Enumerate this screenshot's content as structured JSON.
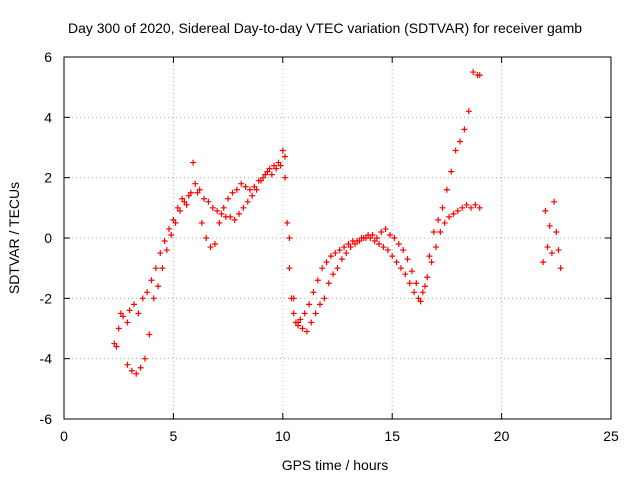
{
  "chart_data": {
    "type": "scatter",
    "title": "Day 300 of 2020, Sidereal Day-to-day VTEC variation (SDTVAR) for receiver gamb",
    "xlabel": "GPS time / hours",
    "ylabel": "SDTVAR / TECUs",
    "xlim": [
      0,
      25
    ],
    "ylim": [
      -6,
      6
    ],
    "x_ticks": [
      0,
      5,
      10,
      15,
      20,
      25
    ],
    "y_ticks": [
      -6,
      -4,
      -2,
      0,
      2,
      4,
      6
    ],
    "x_tick_labels": [
      "0",
      "5",
      "10",
      "15",
      "20",
      "25"
    ],
    "y_tick_labels": [
      "-6",
      "-4",
      "-2",
      "0",
      "2",
      "4",
      "6"
    ],
    "grid": true,
    "marker": "+",
    "color": "#ff0000",
    "series": [
      {
        "x": [
          2.3,
          2.4,
          2.5,
          2.6,
          2.7,
          2.9,
          3.0,
          3.2,
          3.4,
          3.6,
          3.8,
          4.0,
          4.2,
          4.4,
          4.6,
          4.8,
          5.0,
          5.2,
          5.4,
          5.6,
          5.8,
          6.0,
          6.2,
          6.4,
          6.6,
          6.8,
          7.0,
          7.2,
          7.4,
          7.6,
          7.8,
          8.0,
          8.2,
          8.4,
          8.6,
          8.8,
          9.0,
          9.2,
          9.4,
          9.6,
          9.8,
          10.0,
          10.1,
          10.2,
          10.3,
          10.4,
          10.5,
          10.6,
          10.7,
          10.8,
          11.0,
          11.2,
          11.4,
          11.6,
          11.8,
          12.0,
          12.2,
          12.4,
          12.6,
          12.8,
          13.0,
          13.2,
          13.4,
          13.6,
          13.8,
          14.0,
          14.2,
          14.4,
          14.6,
          14.8,
          15.0,
          15.2,
          15.4,
          15.6,
          15.8,
          16.0,
          16.2,
          16.4,
          16.6,
          16.8,
          17.0,
          17.2,
          17.4,
          17.6,
          17.8,
          18.0,
          18.2,
          18.4,
          18.6,
          18.8,
          19.0
        ],
        "y": [
          -3.5,
          -3.6,
          -3.0,
          -2.5,
          -2.6,
          -2.8,
          -2.4,
          -2.2,
          -2.5,
          -2.0,
          -1.8,
          -1.4,
          -1.0,
          -0.5,
          -0.1,
          0.3,
          0.6,
          1.0,
          1.3,
          1.1,
          1.5,
          1.8,
          1.6,
          1.3,
          1.2,
          1.0,
          0.9,
          0.8,
          0.7,
          0.7,
          0.6,
          0.8,
          1.0,
          1.2,
          1.4,
          1.6,
          1.9,
          2.1,
          2.3,
          2.4,
          2.5,
          2.9,
          2.0,
          0.5,
          -1.0,
          -2.0,
          -2.5,
          -2.8,
          -2.9,
          -2.7,
          -2.5,
          -2.2,
          -1.8,
          -1.4,
          -1.0,
          -0.8,
          -0.6,
          -0.5,
          -0.4,
          -0.3,
          -0.2,
          -0.1,
          -0.1,
          0.0,
          0.0,
          0.0,
          -0.1,
          -0.2,
          -0.3,
          -0.4,
          -0.6,
          -0.8,
          -1.0,
          -1.2,
          -1.5,
          -1.8,
          -2.0,
          -1.8,
          -1.3,
          -0.8,
          -0.3,
          0.2,
          0.5,
          0.7,
          0.8,
          0.9,
          1.0,
          1.1,
          1.0,
          1.1,
          1.0
        ]
      },
      {
        "x": [
          2.9,
          3.1,
          3.3,
          3.5,
          3.7,
          3.9,
          4.1,
          4.3,
          4.5,
          4.7,
          4.9,
          5.1,
          5.3,
          5.5,
          5.7,
          5.9,
          6.1,
          6.3,
          6.5,
          6.7,
          6.9,
          7.1,
          7.3,
          7.5,
          7.7,
          7.9,
          8.1,
          8.3,
          8.5,
          8.7,
          8.9,
          9.1,
          9.3,
          9.5,
          9.7,
          9.9,
          10.1,
          10.3,
          10.5,
          10.7,
          10.9,
          11.1,
          11.3,
          11.5,
          11.7,
          11.9,
          12.1,
          12.3,
          12.5,
          12.7,
          12.9,
          13.1,
          13.3,
          13.5,
          13.7,
          13.9,
          14.1,
          14.3,
          14.5,
          14.7,
          14.9,
          15.1,
          15.3,
          15.5,
          15.7,
          15.9,
          16.1,
          16.3,
          16.5,
          16.7,
          16.9,
          17.1,
          17.3,
          17.5,
          17.7,
          17.9,
          18.1,
          18.3,
          18.5,
          18.7,
          18.9,
          19.0
        ],
        "y": [
          -4.2,
          -4.4,
          -4.5,
          -4.3,
          -4.0,
          -3.2,
          -2.0,
          -1.6,
          -1.0,
          -0.4,
          0.1,
          0.5,
          0.9,
          1.2,
          1.4,
          2.5,
          1.5,
          0.5,
          0.0,
          -0.3,
          -0.2,
          0.5,
          1.0,
          1.3,
          1.5,
          1.6,
          1.8,
          1.7,
          1.6,
          1.7,
          1.9,
          2.0,
          2.2,
          2.1,
          2.3,
          2.4,
          2.7,
          0.0,
          -2.0,
          -2.8,
          -3.0,
          -3.1,
          -2.8,
          -2.5,
          -2.2,
          -2.0,
          -1.5,
          -1.2,
          -1.0,
          -0.7,
          -0.5,
          -0.3,
          -0.2,
          -0.1,
          0.0,
          0.1,
          0.1,
          0.0,
          0.2,
          0.3,
          0.1,
          0.0,
          -0.2,
          -0.4,
          -0.7,
          -1.1,
          -1.5,
          -2.1,
          -1.6,
          -0.6,
          0.2,
          0.6,
          1.0,
          1.6,
          2.2,
          2.9,
          3.2,
          3.6,
          4.2,
          5.5,
          5.4,
          5.4
        ]
      },
      {
        "x": [
          21.9,
          22.0,
          22.1,
          22.2,
          22.3,
          22.4,
          22.5,
          22.6,
          22.7
        ],
        "y": [
          -0.8,
          0.9,
          -0.3,
          0.4,
          -0.5,
          1.2,
          0.2,
          -0.4,
          -1.0
        ]
      }
    ]
  }
}
